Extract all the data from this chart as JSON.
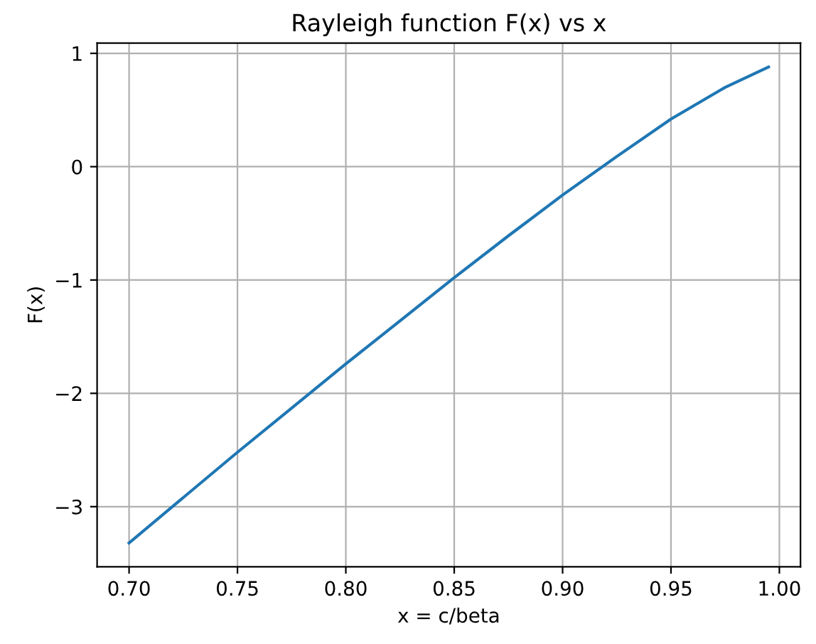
{
  "chart_data": {
    "type": "line",
    "title": "Rayleigh function F(x) vs x",
    "xlabel": "x = c/beta",
    "ylabel": "F(x)",
    "x": [
      0.7,
      0.725,
      0.75,
      0.775,
      0.8,
      0.825,
      0.85,
      0.875,
      0.9,
      0.925,
      0.95,
      0.975,
      0.995
    ],
    "series": [
      {
        "color": "#1f77b4",
        "values": [
          -3.32,
          -2.92,
          -2.52,
          -2.13,
          -1.74,
          -1.36,
          -0.98,
          -0.61,
          -0.25,
          0.09,
          0.42,
          0.7,
          0.88
        ]
      }
    ],
    "xlim": [
      0.68525,
      1.00975
    ],
    "ylim": [
      -3.53,
      1.09
    ],
    "xticks": [
      {
        "value": 0.7,
        "label": "0.70"
      },
      {
        "value": 0.75,
        "label": "0.75"
      },
      {
        "value": 0.8,
        "label": "0.80"
      },
      {
        "value": 0.85,
        "label": "0.85"
      },
      {
        "value": 0.9,
        "label": "0.90"
      },
      {
        "value": 0.95,
        "label": "0.95"
      },
      {
        "value": 1.0,
        "label": "1.00"
      }
    ],
    "yticks": [
      {
        "value": -3,
        "label": "−3"
      },
      {
        "value": -2,
        "label": "−2"
      },
      {
        "value": -1,
        "label": "−1"
      },
      0,
      1
    ],
    "grid": true,
    "line_style": "solid"
  }
}
